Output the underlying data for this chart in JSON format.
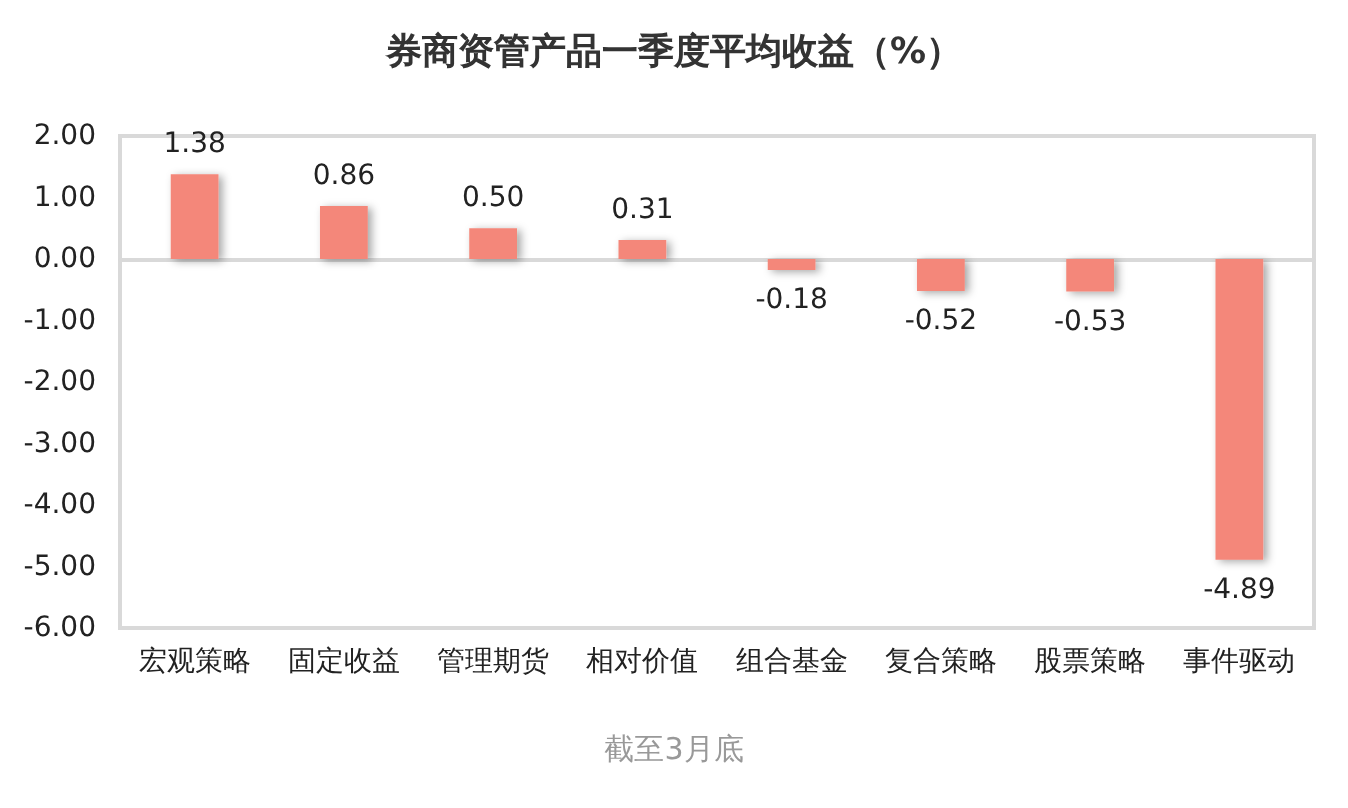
{
  "chart_data": {
    "type": "bar",
    "title": "券商资管产品一季度平均收益（%）",
    "categories": [
      "宏观策略",
      "固定收益",
      "管理期货",
      "相对价值",
      "组合基金",
      "复合策略",
      "股票策略",
      "事件驱动"
    ],
    "values": [
      1.38,
      0.86,
      0.5,
      0.31,
      -0.18,
      -0.52,
      -0.53,
      -4.89
    ],
    "value_labels": [
      "1.38",
      "0.86",
      "0.50",
      "0.31",
      "-0.18",
      "-0.52",
      "-0.53",
      "-4.89"
    ],
    "color": "#f4877a",
    "ylim": [
      -6,
      2
    ],
    "yticks": [
      {
        "value": -6,
        "label": "-6.00"
      },
      {
        "value": -5,
        "label": "-5.00"
      },
      {
        "value": -4,
        "label": "-4.00"
      },
      {
        "value": -3,
        "label": "-3.00"
      },
      {
        "value": -2,
        "label": "-2.00"
      },
      {
        "value": -1,
        "label": "-1.00"
      },
      {
        "value": 0,
        "label": "0.00"
      },
      {
        "value": 1,
        "label": "1.00"
      },
      {
        "value": 2,
        "label": "2.00"
      }
    ],
    "annotations": [
      "截至3月底"
    ]
  }
}
